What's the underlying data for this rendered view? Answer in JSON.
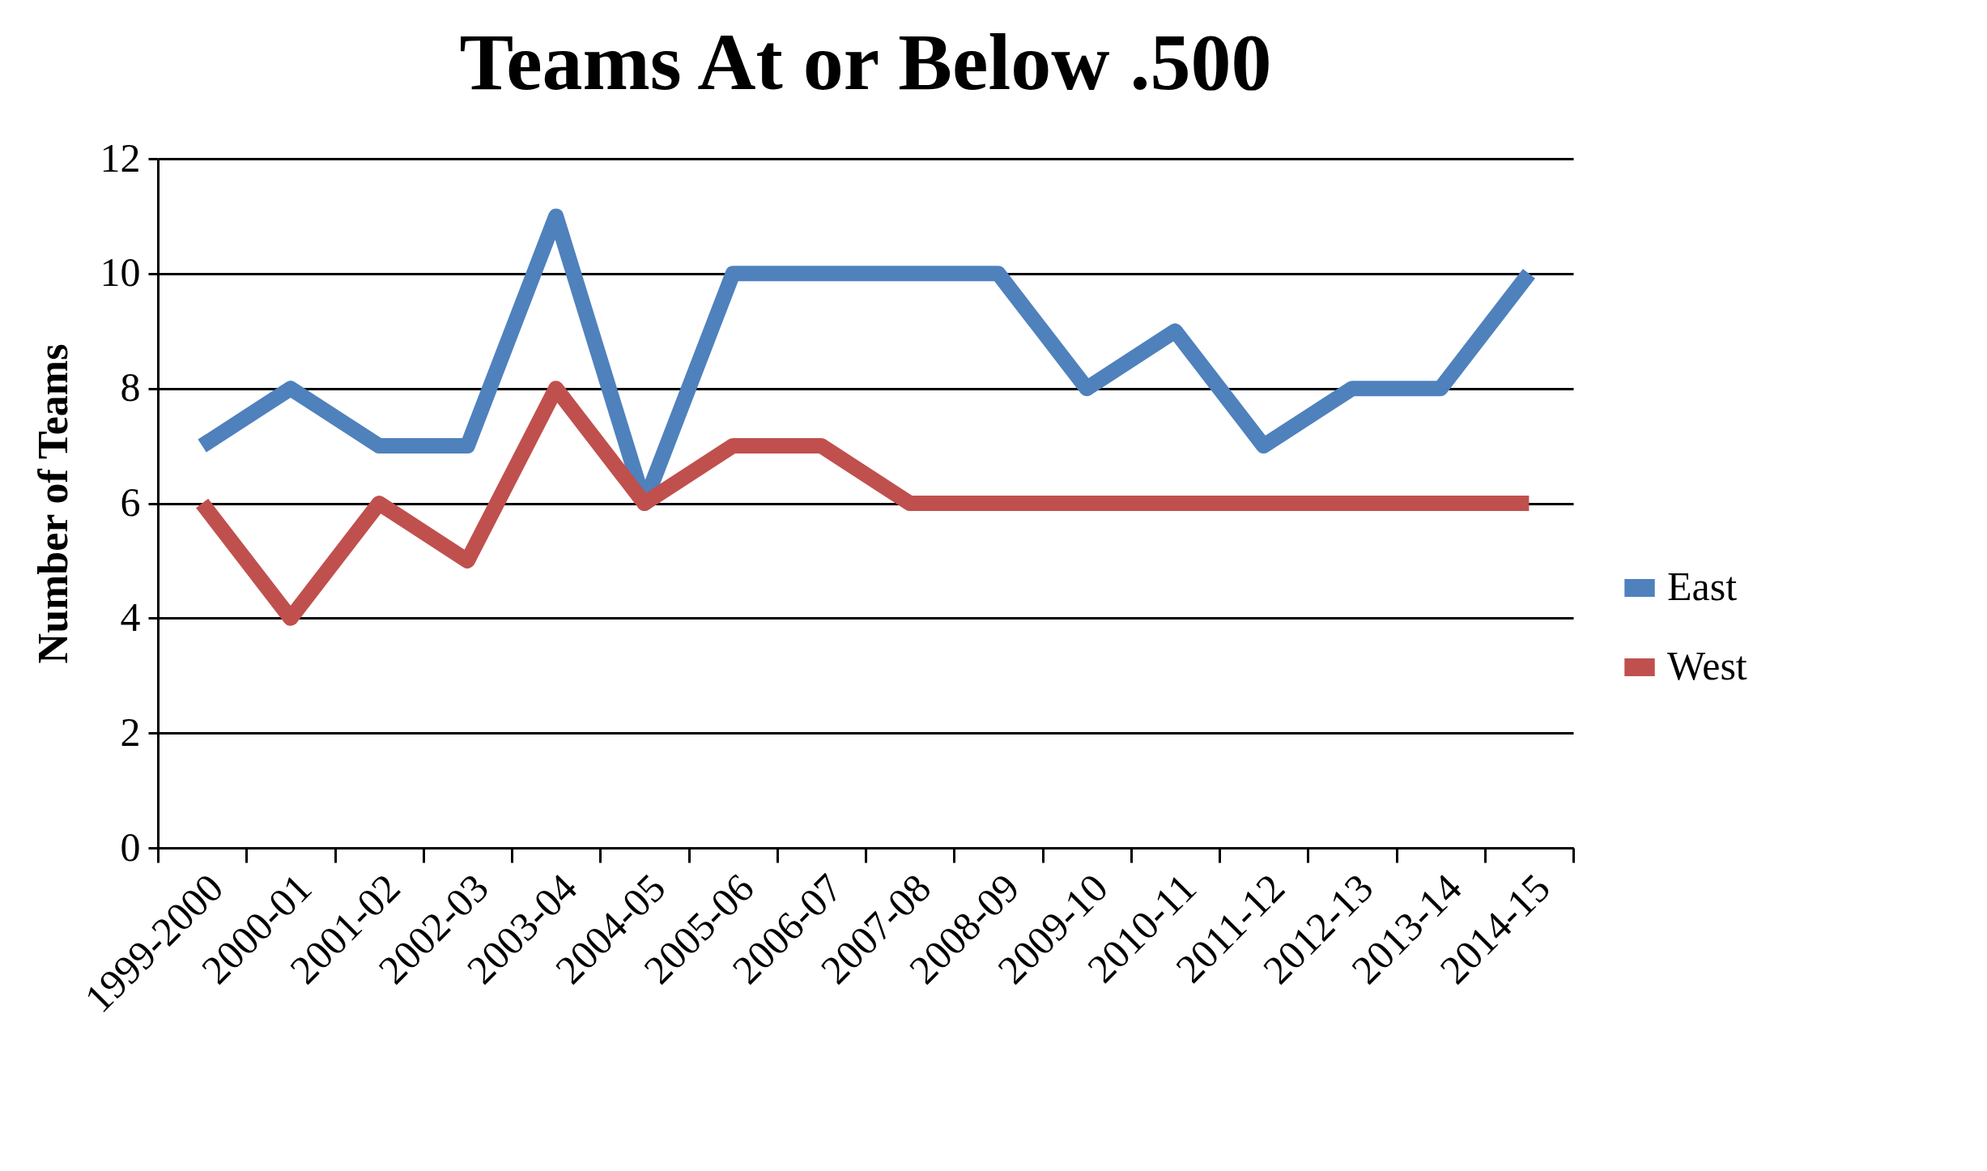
{
  "chart_data": {
    "type": "line",
    "title": "Teams At or Below .500",
    "ylabel": "Number of Teams",
    "categories": [
      "1999-2000",
      "2000-01",
      "2001-02",
      "2002-03",
      "2003-04",
      "2004-05",
      "2005-06",
      "2006-07",
      "2007-08",
      "2008-09",
      "2009-10",
      "2010-11",
      "2011-12",
      "2012-13",
      "2013-14",
      "2014-15"
    ],
    "series": [
      {
        "name": "East",
        "color": "#4f81bd",
        "values": [
          7,
          8,
          7,
          7,
          11,
          6,
          10,
          10,
          10,
          10,
          8,
          9,
          7,
          8,
          8,
          10
        ]
      },
      {
        "name": "West",
        "color": "#c0504d",
        "values": [
          6,
          4,
          6,
          5,
          8,
          6,
          7,
          7,
          6,
          6,
          6,
          6,
          6,
          6,
          6,
          6
        ]
      }
    ],
    "ylim": [
      0,
      12
    ],
    "yticks": [
      0,
      2,
      4,
      6,
      8,
      10,
      12
    ],
    "grid": "y",
    "legend": "right",
    "marker": "none",
    "line_style": "solid"
  }
}
